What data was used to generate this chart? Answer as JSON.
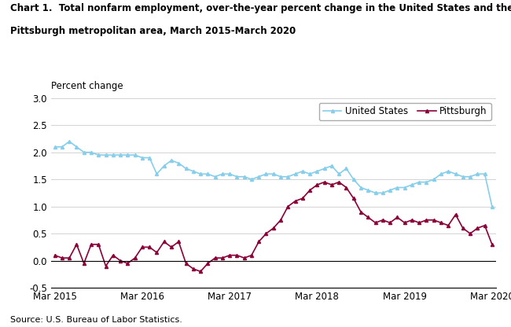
{
  "title_line1": "Chart 1.  Total nonfarm employment, over-the-year percent change in the United States and the",
  "title_line2": "Pittsburgh metropolitan area, March 2015-March 2020",
  "ylabel": "Percent change",
  "source": "Source: U.S. Bureau of Labor Statistics.",
  "ylim": [
    -0.5,
    3.0
  ],
  "yticks": [
    -0.5,
    0.0,
    0.5,
    1.0,
    1.5,
    2.0,
    2.5,
    3.0
  ],
  "xtick_labels": [
    "Mar 2015",
    "Mar 2016",
    "Mar 2017",
    "Mar 2018",
    "Mar 2019",
    "Mar 2020"
  ],
  "us_color": "#87CEEB",
  "pitt_color": "#8B0038",
  "us_data": [
    2.1,
    2.1,
    2.2,
    2.1,
    2.0,
    2.0,
    1.95,
    1.95,
    1.95,
    1.95,
    1.95,
    1.95,
    1.9,
    1.9,
    1.6,
    1.75,
    1.85,
    1.8,
    1.7,
    1.65,
    1.6,
    1.6,
    1.55,
    1.6,
    1.6,
    1.55,
    1.55,
    1.5,
    1.55,
    1.6,
    1.6,
    1.55,
    1.55,
    1.6,
    1.65,
    1.6,
    1.65,
    1.7,
    1.75,
    1.6,
    1.7,
    1.5,
    1.35,
    1.3,
    1.25,
    1.25,
    1.3,
    1.35,
    1.35,
    1.4,
    1.45,
    1.45,
    1.5,
    1.6,
    1.65,
    1.6,
    1.55,
    1.55,
    1.6,
    1.6,
    1.0
  ],
  "pitt_data": [
    0.1,
    0.05,
    0.05,
    0.3,
    -0.05,
    0.3,
    0.3,
    -0.1,
    0.1,
    0.0,
    -0.05,
    0.05,
    0.25,
    0.25,
    0.15,
    0.35,
    0.25,
    0.35,
    -0.05,
    -0.15,
    -0.2,
    -0.05,
    0.05,
    0.05,
    0.1,
    0.1,
    0.05,
    0.1,
    0.35,
    0.5,
    0.6,
    0.75,
    1.0,
    1.1,
    1.15,
    1.3,
    1.4,
    1.45,
    1.4,
    1.45,
    1.35,
    1.15,
    0.9,
    0.8,
    0.7,
    0.75,
    0.7,
    0.8,
    0.7,
    0.75,
    0.7,
    0.75,
    0.75,
    0.7,
    0.65,
    0.85,
    0.6,
    0.5,
    0.6,
    0.65,
    0.3
  ]
}
